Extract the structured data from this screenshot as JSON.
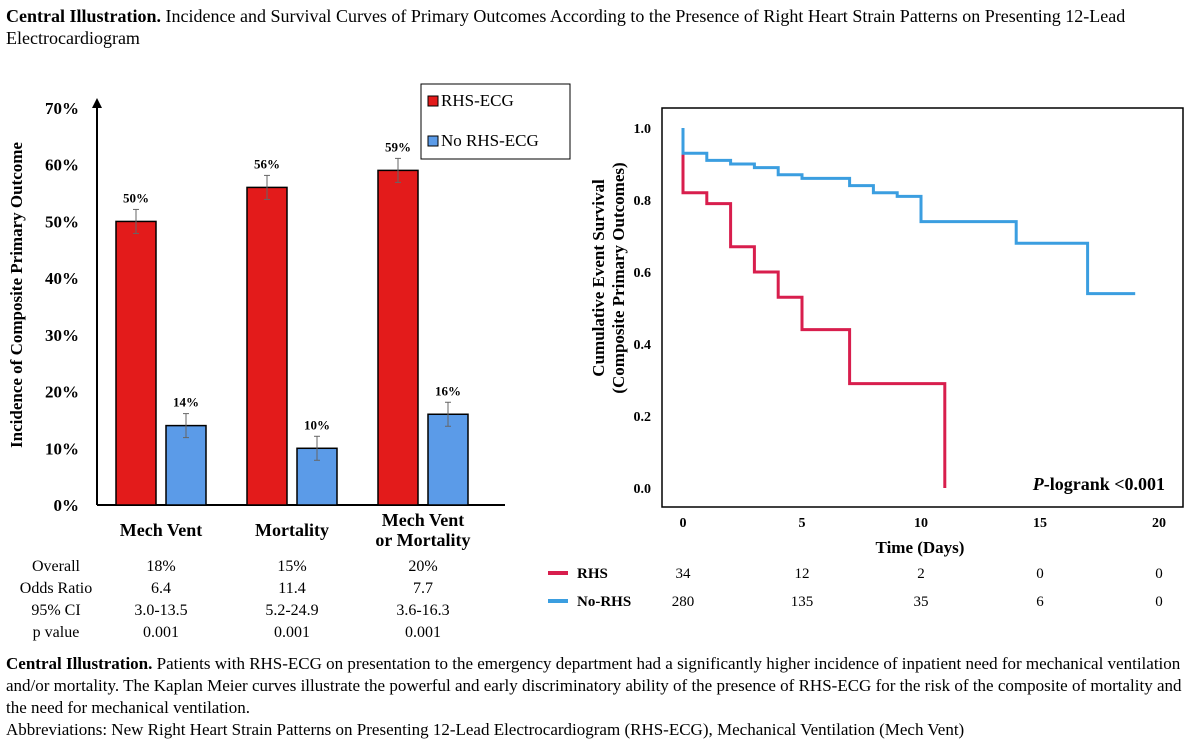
{
  "title": {
    "lead": "Central Illustration.",
    "text": " Incidence and Survival Curves of Primary Outcomes According to the Presence of Right Heart Strain Patterns on Presenting 12-Lead Electrocardiogram"
  },
  "caption": {
    "lead": "Central Illustration.",
    "text": " Patients with RHS-ECG on presentation to the emergency department had a significantly higher incidence of inpatient need for mechanical ventilation and/or mortality. The Kaplan Meier curves illustrate the powerful and early discriminatory ability of the presence of RHS-ECG for the risk of the composite of mortality and the need for mechanical ventilation.",
    "abbrev": "Abbreviations: New Right Heart Strain Patterns on Presenting 12-Lead Electrocardiogram (RHS-ECG), Mechanical Ventilation (Mech Vent)"
  },
  "colors": {
    "rhs_bar": "#e31b1b",
    "no_rhs_bar": "#5b9be8",
    "rhs_line": "#d81e4d",
    "no_rhs_line": "#3b9ee0"
  },
  "chart_data": [
    {
      "type": "bar",
      "ylabel": "Incidence of Composite Primary Outcome",
      "ylim": [
        0,
        70
      ],
      "yticks": [
        "0%",
        "10%",
        "20%",
        "30%",
        "40%",
        "50%",
        "60%",
        "70%"
      ],
      "categories": [
        [
          "Mech Vent"
        ],
        [
          "Mortality"
        ],
        [
          "Mech Vent",
          "or Mortality"
        ]
      ],
      "series": [
        {
          "name": "RHS-ECG",
          "values": [
            50,
            56,
            59
          ],
          "labels": [
            "50%",
            "56%",
            "59%"
          ]
        },
        {
          "name": "No RHS-ECG",
          "values": [
            14,
            10,
            16
          ],
          "labels": [
            "14%",
            "10%",
            "16%"
          ]
        }
      ],
      "legend_position": "top-right",
      "stats_table": [
        {
          "label": "Overall",
          "values": [
            "18%",
            "15%",
            "20%"
          ]
        },
        {
          "label": "Odds Ratio",
          "values": [
            "6.4",
            "11.4",
            "7.7"
          ]
        },
        {
          "label": "95% CI",
          "values": [
            "3.0-13.5",
            "5.2-24.9",
            "3.6-16.3"
          ]
        },
        {
          "label": "p value",
          "values": [
            "0.001",
            "0.001",
            "0.001"
          ]
        }
      ]
    },
    {
      "type": "line",
      "ylabel": [
        "Cumulative Event Survival",
        "(Composite Primary Outcomes)"
      ],
      "xlabel": "Time (Days)",
      "xlim": [
        0,
        20
      ],
      "ylim": [
        0,
        1.0
      ],
      "xticks": [
        "0",
        "5",
        "10",
        "15",
        "20"
      ],
      "yticks": [
        "0.0",
        "0.2",
        "0.4",
        "0.6",
        "0.8",
        "1.0"
      ],
      "annotation_italic": "P",
      "annotation_rest": "-logrank <0.001",
      "series": [
        {
          "name": "RHS",
          "x": [
            0,
            0,
            1,
            1,
            2,
            2,
            3,
            3,
            4,
            4,
            5,
            5,
            7,
            7,
            11,
            11
          ],
          "y": [
            1.0,
            0.82,
            0.82,
            0.79,
            0.79,
            0.67,
            0.67,
            0.6,
            0.6,
            0.53,
            0.53,
            0.44,
            0.44,
            0.29,
            0.29,
            0.0
          ]
        },
        {
          "name": "No-RHS",
          "x": [
            0,
            0,
            1,
            1,
            2,
            2,
            3,
            3,
            4,
            4,
            5,
            5,
            7,
            7,
            8,
            8,
            9,
            9,
            10,
            10,
            14,
            14,
            17,
            17,
            19
          ],
          "y": [
            1.0,
            0.93,
            0.93,
            0.91,
            0.91,
            0.9,
            0.9,
            0.89,
            0.89,
            0.87,
            0.87,
            0.86,
            0.86,
            0.84,
            0.84,
            0.82,
            0.82,
            0.81,
            0.81,
            0.74,
            0.74,
            0.68,
            0.68,
            0.54,
            0.54
          ]
        }
      ],
      "risk_table": [
        {
          "name": "RHS",
          "values": [
            "34",
            "12",
            "2",
            "0",
            "0"
          ]
        },
        {
          "name": "No-RHS",
          "values": [
            "280",
            "135",
            "35",
            "6",
            "0"
          ]
        }
      ]
    }
  ]
}
